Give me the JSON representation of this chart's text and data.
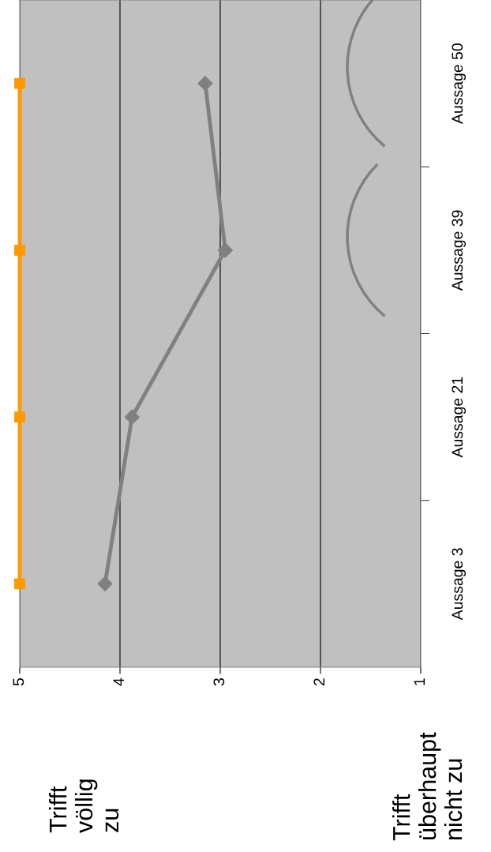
{
  "chart_data": {
    "type": "line",
    "orientation": "horizontal",
    "categories": [
      "Aussage 50",
      "Aussage 39",
      "Aussage 21",
      "Aussage 3"
    ],
    "series": [
      {
        "color": "#ff9900",
        "marker": "square",
        "values": [
          5,
          5,
          5,
          5
        ]
      },
      {
        "color": "#808080",
        "marker": "diamond",
        "values": [
          3.15,
          2.95,
          3.88,
          4.15
        ]
      }
    ],
    "xlim": [
      5,
      1
    ],
    "xticks": [
      5,
      4,
      3,
      2,
      1
    ],
    "grid": "x",
    "legend": false,
    "annotations": [
      "Trifft\nvöllig\nzu",
      "Trifft\nüberhaupt\nnicht zu"
    ]
  }
}
